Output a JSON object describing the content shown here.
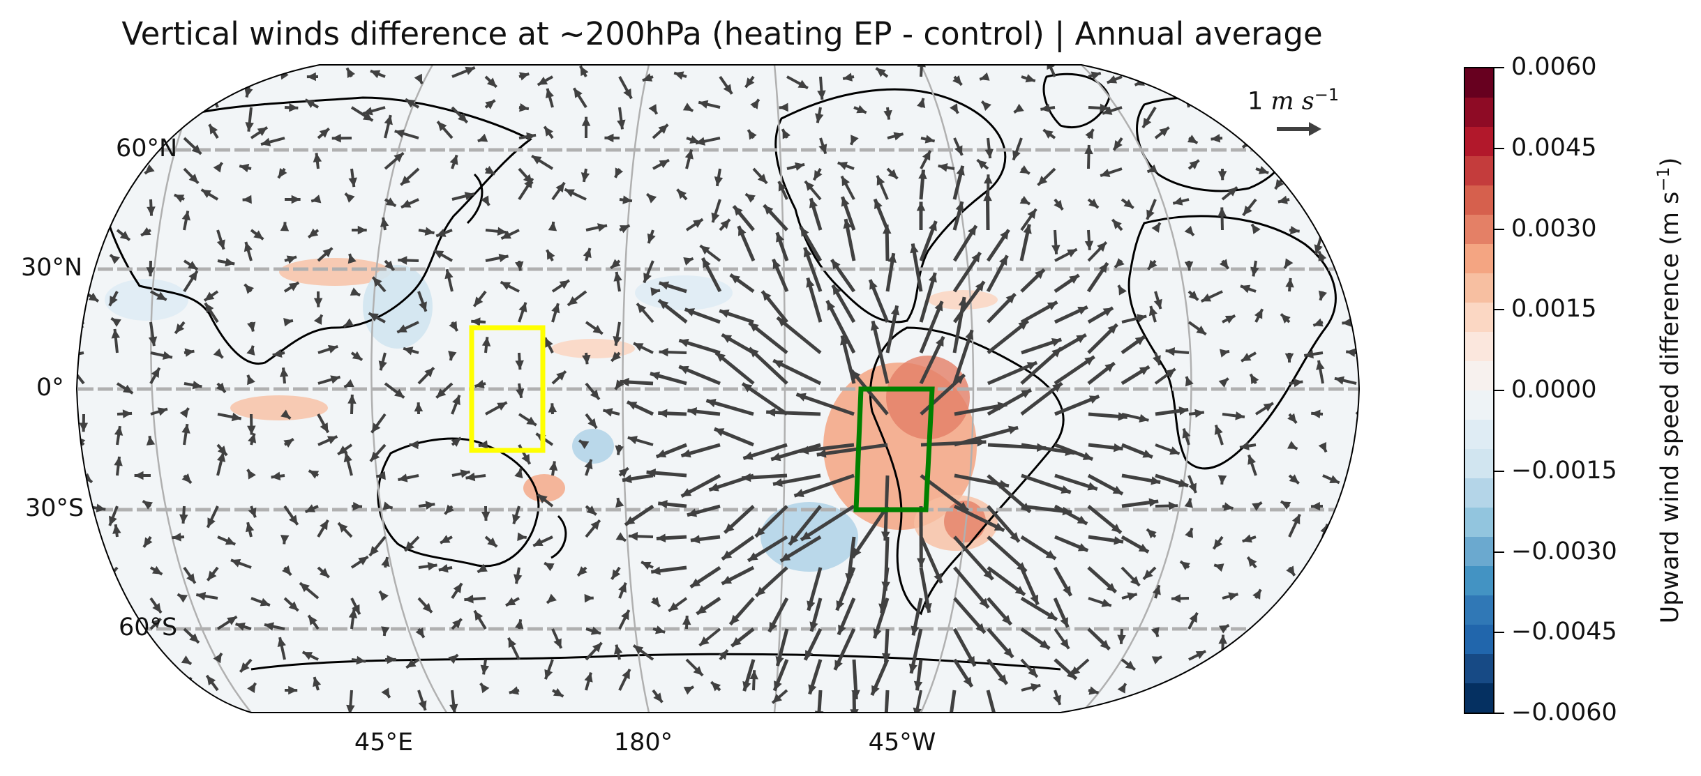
{
  "title": "Vertical winds difference at ~200hPa (heating EP - control) | Annual average",
  "lat_labels": [
    "60°N",
    "30°N",
    "0°",
    "30°S",
    "60°S"
  ],
  "lon_labels": [
    "45°E",
    "180°",
    "45°W"
  ],
  "quiver_key": {
    "value": "1",
    "unit_base": "m s",
    "unit_exp": "−1"
  },
  "colorbar": {
    "title_base": "Upward wind speed difference (m s",
    "title_exp": "−1",
    "title_end": ")",
    "ticks": [
      "0.0060",
      "0.0045",
      "0.0030",
      "0.0015",
      "0.0000",
      "−0.0015",
      "−0.0030",
      "−0.0045",
      "−0.0060"
    ],
    "colors": [
      "#67001f",
      "#8e0b25",
      "#b2182b",
      "#c43c3c",
      "#d6604d",
      "#e48066",
      "#f4a582",
      "#f7bfa1",
      "#fbd7c3",
      "#fbe7dd",
      "#f7f1ee",
      "#eef3f6",
      "#dfecf4",
      "#d1e5f0",
      "#b4d5e8",
      "#92c5de",
      "#6ba9cf",
      "#4393c3",
      "#3078b6",
      "#2166ac",
      "#174a85",
      "#053061"
    ],
    "range": [
      -0.006,
      0.006
    ]
  },
  "boxes": [
    {
      "name": "yellow-box",
      "color": "#ffff00",
      "lat": [
        -15,
        15
      ]
    },
    {
      "name": "green-box",
      "color": "#008000",
      "lat": [
        -30,
        0
      ]
    }
  ],
  "colors": {
    "land_outline": "#000000",
    "gridline": "#b0b0b0",
    "arrow": "#404040"
  }
}
